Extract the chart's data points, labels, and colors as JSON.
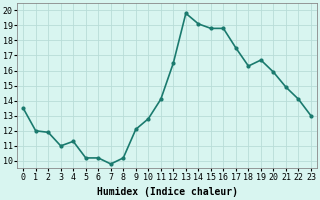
{
  "x": [
    0,
    1,
    2,
    3,
    4,
    5,
    6,
    7,
    8,
    9,
    10,
    11,
    12,
    13,
    14,
    15,
    16,
    17,
    18,
    19,
    20,
    21,
    22,
    23
  ],
  "y": [
    13.5,
    12.0,
    11.9,
    11.0,
    11.3,
    10.2,
    10.2,
    9.8,
    10.2,
    12.1,
    12.8,
    14.1,
    16.5,
    19.8,
    19.1,
    18.8,
    18.8,
    17.5,
    16.3,
    16.7,
    15.9,
    14.9,
    14.1,
    13.0
  ],
  "line_color": "#1a7a6e",
  "marker": "o",
  "marker_size": 2.0,
  "bg_color": "#d8f5f0",
  "grid_color": "#b8ddd8",
  "xlabel": "Humidex (Indice chaleur)",
  "ylabel_ticks": [
    10,
    11,
    12,
    13,
    14,
    15,
    16,
    17,
    18,
    19,
    20
  ],
  "xlim": [
    -0.5,
    23.5
  ],
  "ylim": [
    9.5,
    20.5
  ],
  "xlabel_fontsize": 7,
  "tick_fontsize": 6,
  "line_width": 1.2
}
